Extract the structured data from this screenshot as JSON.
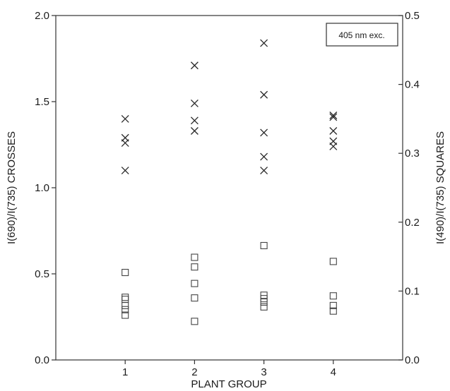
{
  "chart_data": {
    "type": "scatter",
    "annotation": "405 nm exc.",
    "xlabel": "PLANT GROUP",
    "ylabel_left": "I(690)/I(735)  CROSSES",
    "ylabel_right": "I(490)/I(735)  SQUARES",
    "xlim": [
      0,
      5
    ],
    "x_ticks": [
      "1",
      "2",
      "3",
      "4"
    ],
    "ylim_left": [
      0.0,
      2.0
    ],
    "y_ticks_left": [
      "0.0",
      "0.5",
      "1.0",
      "1.5",
      "2.0"
    ],
    "ylim_right": [
      0.0,
      0.5
    ],
    "y_ticks_right": [
      "0.0",
      "0.1",
      "0.2",
      "0.3",
      "0.4",
      "0.5"
    ],
    "grid": false,
    "series": [
      {
        "axis": "left",
        "marker": "cross",
        "points": [
          {
            "x": 1,
            "y": 1.4
          },
          {
            "x": 1,
            "y": 1.29
          },
          {
            "x": 1,
            "y": 1.26
          },
          {
            "x": 1,
            "y": 1.1
          },
          {
            "x": 2,
            "y": 1.71
          },
          {
            "x": 2,
            "y": 1.49
          },
          {
            "x": 2,
            "y": 1.39
          },
          {
            "x": 2,
            "y": 1.33
          },
          {
            "x": 3,
            "y": 1.84
          },
          {
            "x": 3,
            "y": 1.54
          },
          {
            "x": 3,
            "y": 1.32
          },
          {
            "x": 3,
            "y": 1.18
          },
          {
            "x": 3,
            "y": 1.1
          },
          {
            "x": 4,
            "y": 1.42
          },
          {
            "x": 4,
            "y": 1.41
          },
          {
            "x": 4,
            "y": 1.33
          },
          {
            "x": 4,
            "y": 1.27
          },
          {
            "x": 4,
            "y": 1.24
          }
        ]
      },
      {
        "axis": "right",
        "marker": "square",
        "points": [
          {
            "x": 1,
            "y": 0.127
          },
          {
            "x": 1,
            "y": 0.091
          },
          {
            "x": 1,
            "y": 0.088
          },
          {
            "x": 1,
            "y": 0.079
          },
          {
            "x": 1,
            "y": 0.073
          },
          {
            "x": 1,
            "y": 0.065
          },
          {
            "x": 2,
            "y": 0.149
          },
          {
            "x": 2,
            "y": 0.135
          },
          {
            "x": 2,
            "y": 0.111
          },
          {
            "x": 2,
            "y": 0.09
          },
          {
            "x": 2,
            "y": 0.056
          },
          {
            "x": 3,
            "y": 0.166
          },
          {
            "x": 3,
            "y": 0.094
          },
          {
            "x": 3,
            "y": 0.089
          },
          {
            "x": 3,
            "y": 0.084
          },
          {
            "x": 3,
            "y": 0.077
          },
          {
            "x": 4,
            "y": 0.143
          },
          {
            "x": 4,
            "y": 0.093
          },
          {
            "x": 4,
            "y": 0.079
          },
          {
            "x": 4,
            "y": 0.071
          }
        ]
      }
    ]
  }
}
